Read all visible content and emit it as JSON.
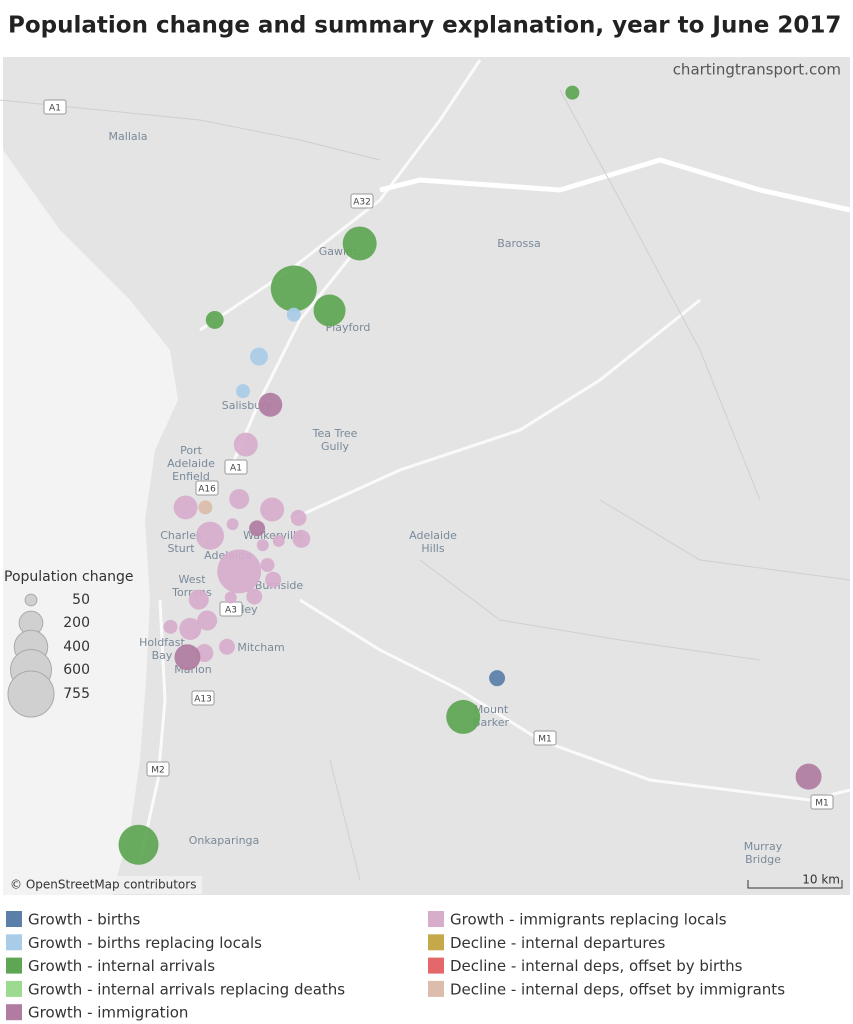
{
  "chart_data": {
    "type": "bubble-map",
    "title": "Population change and summary explanation, year to June 2017",
    "watermark": "chartingtransport.com",
    "attribution": "© OpenStreetMap contributors",
    "scale_label": "10 km",
    "xlim": [
      138.4,
      139.3
    ],
    "ylim": [
      -35.28,
      -34.48
    ],
    "size_legend": {
      "title": "Population change",
      "values": [
        50,
        200,
        400,
        600,
        755
      ]
    },
    "series": [
      {
        "name": "Growth - births",
        "color": "#5a7fa9"
      },
      {
        "name": "Growth - births replacing locals",
        "color": "#a9cce8"
      },
      {
        "name": "Growth - internal arrivals",
        "color": "#5ea653"
      },
      {
        "name": "Growth - internal arrivals replacing deaths",
        "color": "#9cda8f"
      },
      {
        "name": "Growth - immigration",
        "color": "#b07ca1"
      },
      {
        "name": "Growth - immigrants replacing locals",
        "color": "#d7adcc"
      },
      {
        "name": "Decline - internal departures",
        "color": "#c4a84a"
      },
      {
        "name": "Decline - internal deps, offset by births",
        "color": "#e4676c"
      },
      {
        "name": "Decline - internal deps, offset by immigrants",
        "color": "#dcbcab"
      }
    ],
    "points": [
      {
        "lon": 139.005,
        "lat": -34.514,
        "value": 70,
        "category": "Growth - internal arrivals"
      },
      {
        "lon": 138.779,
        "lat": -34.658,
        "value": 412,
        "category": "Growth - internal arrivals"
      },
      {
        "lon": 138.709,
        "lat": -34.701,
        "value": 755,
        "category": "Growth - internal arrivals"
      },
      {
        "lon": 138.747,
        "lat": -34.722,
        "value": 365,
        "category": "Growth - internal arrivals"
      },
      {
        "lon": 138.625,
        "lat": -34.731,
        "value": 115,
        "category": "Growth - internal arrivals"
      },
      {
        "lon": 138.709,
        "lat": -34.726,
        "value": 70,
        "category": "Growth - births replacing locals"
      },
      {
        "lon": 138.672,
        "lat": -34.766,
        "value": 115,
        "category": "Growth - births replacing locals"
      },
      {
        "lon": 138.655,
        "lat": -34.799,
        "value": 70,
        "category": "Growth - births replacing locals"
      },
      {
        "lon": 138.684,
        "lat": -34.812,
        "value": 205,
        "category": "Growth - immigration"
      },
      {
        "lon": 138.658,
        "lat": -34.85,
        "value": 205,
        "category": "Growth - immigrants replacing locals"
      },
      {
        "lon": 138.594,
        "lat": -34.91,
        "value": 205,
        "category": "Growth - immigrants replacing locals"
      },
      {
        "lon": 138.615,
        "lat": -34.91,
        "value": 70,
        "category": "Decline - internal deps, offset by immigrants"
      },
      {
        "lon": 138.651,
        "lat": -34.902,
        "value": 143,
        "category": "Growth - immigrants replacing locals"
      },
      {
        "lon": 138.686,
        "lat": -34.912,
        "value": 205,
        "category": "Growth - immigrants replacing locals"
      },
      {
        "lon": 138.644,
        "lat": -34.926,
        "value": 51,
        "category": "Growth - immigrants replacing locals"
      },
      {
        "lon": 138.67,
        "lat": -34.93,
        "value": 91,
        "category": "Growth - immigration"
      },
      {
        "lon": 138.714,
        "lat": -34.92,
        "value": 91,
        "category": "Growth - immigrants replacing locals"
      },
      {
        "lon": 138.62,
        "lat": -34.937,
        "value": 280,
        "category": "Growth - immigrants replacing locals"
      },
      {
        "lon": 138.676,
        "lat": -34.946,
        "value": 51,
        "category": "Growth - immigrants replacing locals"
      },
      {
        "lon": 138.693,
        "lat": -34.942,
        "value": 51,
        "category": "Growth - immigrants replacing locals"
      },
      {
        "lon": 138.717,
        "lat": -34.94,
        "value": 115,
        "category": "Growth - immigrants replacing locals"
      },
      {
        "lon": 138.651,
        "lat": -34.971,
        "value": 690,
        "category": "Growth - immigrants replacing locals"
      },
      {
        "lon": 138.681,
        "lat": -34.965,
        "value": 70,
        "category": "Growth - immigrants replacing locals"
      },
      {
        "lon": 138.687,
        "lat": -34.979,
        "value": 91,
        "category": "Growth - immigrants replacing locals"
      },
      {
        "lon": 138.608,
        "lat": -34.998,
        "value": 143,
        "category": "Growth - immigrants replacing locals"
      },
      {
        "lon": 138.642,
        "lat": -34.996,
        "value": 51,
        "category": "Growth - immigrants replacing locals"
      },
      {
        "lon": 138.667,
        "lat": -34.995,
        "value": 91,
        "category": "Growth - immigrants replacing locals"
      },
      {
        "lon": 138.617,
        "lat": -35.018,
        "value": 143,
        "category": "Growth - immigrants replacing locals"
      },
      {
        "lon": 138.578,
        "lat": -35.024,
        "value": 70,
        "category": "Growth - immigrants replacing locals"
      },
      {
        "lon": 138.599,
        "lat": -35.026,
        "value": 173,
        "category": "Growth - immigrants replacing locals"
      },
      {
        "lon": 138.638,
        "lat": -35.043,
        "value": 91,
        "category": "Growth - immigrants replacing locals"
      },
      {
        "lon": 138.614,
        "lat": -35.049,
        "value": 115,
        "category": "Growth - immigrants replacing locals"
      },
      {
        "lon": 138.596,
        "lat": -35.053,
        "value": 241,
        "category": "Growth - immigration"
      },
      {
        "lon": 138.925,
        "lat": -35.073,
        "value": 91,
        "category": "Growth - births"
      },
      {
        "lon": 138.889,
        "lat": -35.11,
        "value": 412,
        "category": "Growth - internal arrivals"
      },
      {
        "lon": 139.256,
        "lat": -35.167,
        "value": 241,
        "category": "Growth - immigration"
      },
      {
        "lon": 138.544,
        "lat": -35.232,
        "value": 571,
        "category": "Growth - internal arrivals"
      }
    ],
    "places": [
      {
        "lines": [
          "Mallala"
        ]
      },
      {
        "lines": [
          "Barossa"
        ]
      },
      {
        "lines": [
          "Gawler"
        ]
      },
      {
        "lines": [
          "Playford"
        ]
      },
      {
        "lines": [
          "Salisbury"
        ]
      },
      {
        "lines": [
          "Tea Tree",
          "Gully"
        ]
      },
      {
        "lines": [
          "Port",
          "Adelaide",
          "Enfield"
        ]
      },
      {
        "lines": [
          "Charles",
          "Sturt"
        ]
      },
      {
        "lines": [
          "Walkerville"
        ]
      },
      {
        "lines": [
          "Adelaide"
        ]
      },
      {
        "lines": [
          "West",
          "Torrens"
        ]
      },
      {
        "lines": [
          "Burnside"
        ]
      },
      {
        "lines": [
          "Unley"
        ]
      },
      {
        "lines": [
          "Adelaide",
          "Hills"
        ]
      },
      {
        "lines": [
          "Mitcham"
        ]
      },
      {
        "lines": [
          "Holdfast",
          "Bay"
        ]
      },
      {
        "lines": [
          "Marion"
        ]
      },
      {
        "lines": [
          "Mount",
          "Barker"
        ]
      },
      {
        "lines": [
          "Onkaparinga"
        ]
      },
      {
        "lines": [
          "Murray",
          "Bridge"
        ]
      }
    ],
    "roads": [
      "A1",
      "A32",
      "A1",
      "A16",
      "A3",
      "A13",
      "M2",
      "M1",
      "M1"
    ]
  }
}
